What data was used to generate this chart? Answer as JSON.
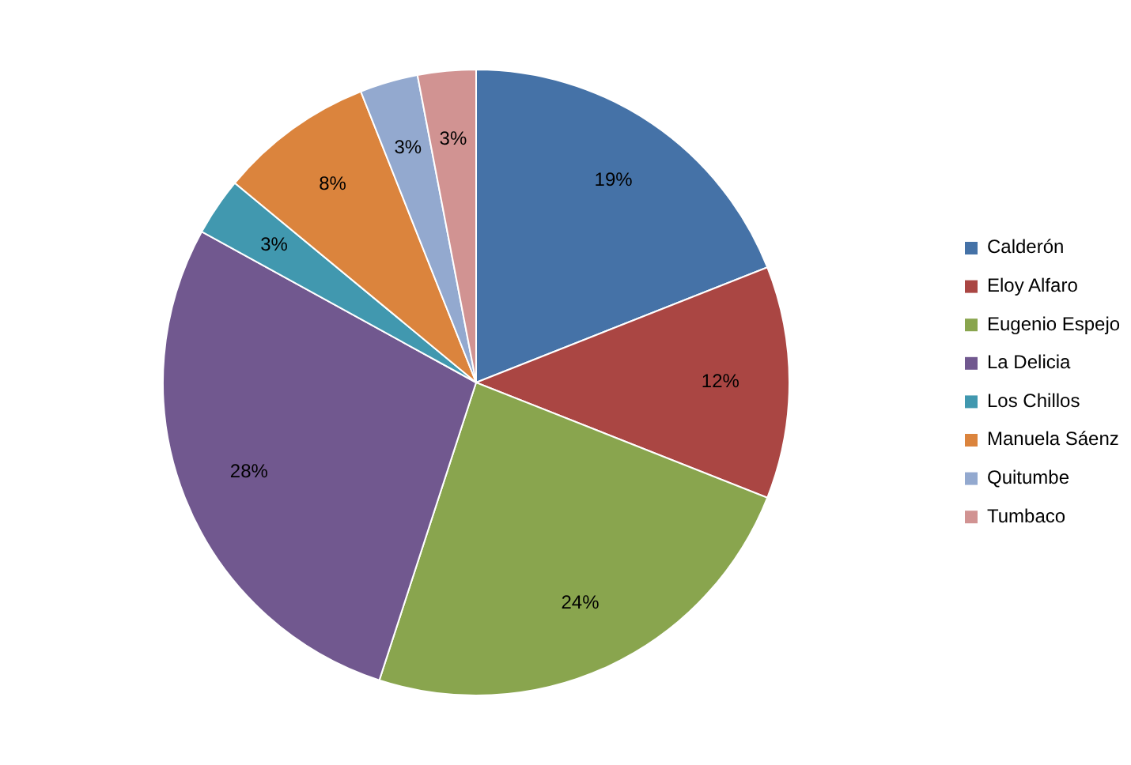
{
  "chart_data": {
    "type": "pie",
    "categories": [
      "Calderón",
      "Eloy Alfaro",
      "Eugenio Espejo",
      "La Delicia",
      "Los Chillos",
      "Manuela Sáenz",
      "Quitumbe",
      "Tumbaco"
    ],
    "values": [
      19,
      12,
      24,
      28,
      3,
      8,
      3,
      3
    ],
    "value_labels": [
      "19%",
      "12%",
      "24%",
      "28%",
      "3%",
      "8%",
      "3%",
      "3%"
    ],
    "colors": [
      "#4572a7",
      "#aa4643",
      "#89a54e",
      "#71588f",
      "#4198af",
      "#db843d",
      "#93a9cf",
      "#d19392"
    ],
    "legend": "right"
  }
}
